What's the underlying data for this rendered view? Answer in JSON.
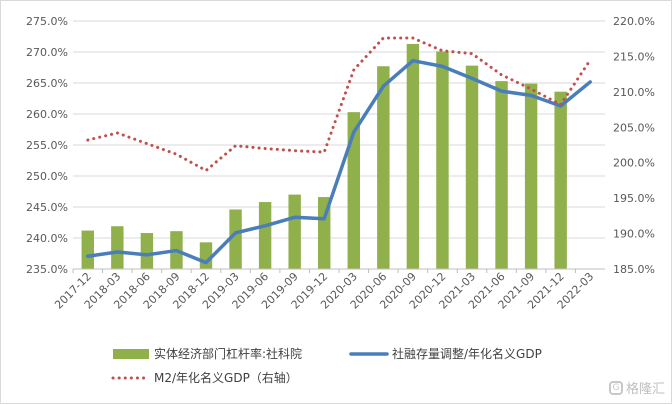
{
  "chart_data": {
    "type": "bar",
    "title": "",
    "categories": [
      "2017-12",
      "2018-03",
      "2018-06",
      "2018-09",
      "2018-12",
      "2019-03",
      "2019-06",
      "2019-09",
      "2019-12",
      "2020-03",
      "2020-06",
      "2020-09",
      "2020-12",
      "2021-03",
      "2021-06",
      "2021-09",
      "2021-12",
      "2022-03"
    ],
    "y_left": {
      "min": 235,
      "max": 275,
      "step": 5,
      "tick_labels": [
        "235.0%",
        "240.0%",
        "245.0%",
        "250.0%",
        "255.0%",
        "260.0%",
        "265.0%",
        "270.0%",
        "275.0%"
      ]
    },
    "y_right": {
      "min": 185,
      "max": 220,
      "step": 5,
      "tick_labels": [
        "185.0%",
        "190.0%",
        "195.0%",
        "200.0%",
        "205.0%",
        "210.0%",
        "215.0%",
        "220.0%"
      ]
    },
    "series": [
      {
        "name": "实体经济部门杠杆率:社科院",
        "type": "bar",
        "axis": "left",
        "color": "#8fb04a",
        "values": [
          241.2,
          241.9,
          240.8,
          241.1,
          239.3,
          244.6,
          245.8,
          247.0,
          246.6,
          260.3,
          267.7,
          271.3,
          270.1,
          267.8,
          265.3,
          264.9,
          263.6,
          null
        ]
      },
      {
        "name": "社融存量调整/年化名义GDP",
        "type": "line",
        "axis": "right",
        "color": "#4a7ebb",
        "values": [
          186.8,
          187.4,
          187.0,
          187.6,
          185.9,
          190.1,
          191.1,
          192.3,
          192.1,
          204.3,
          210.8,
          214.4,
          213.6,
          211.9,
          210.1,
          209.5,
          208.0,
          211.4
        ]
      },
      {
        "name": "M2/年化名义GDP（右轴）",
        "type": "dotted-line",
        "axis": "right",
        "color": "#c0504d",
        "values": [
          203.2,
          204.2,
          202.7,
          201.2,
          198.9,
          202.4,
          202.0,
          201.7,
          201.5,
          213.1,
          217.6,
          217.6,
          215.8,
          215.4,
          212.4,
          210.4,
          208.2,
          214.5
        ]
      }
    ],
    "grid": true,
    "legend_position": "bottom"
  },
  "watermark": {
    "text": "格隆汇",
    "logo": "G"
  }
}
